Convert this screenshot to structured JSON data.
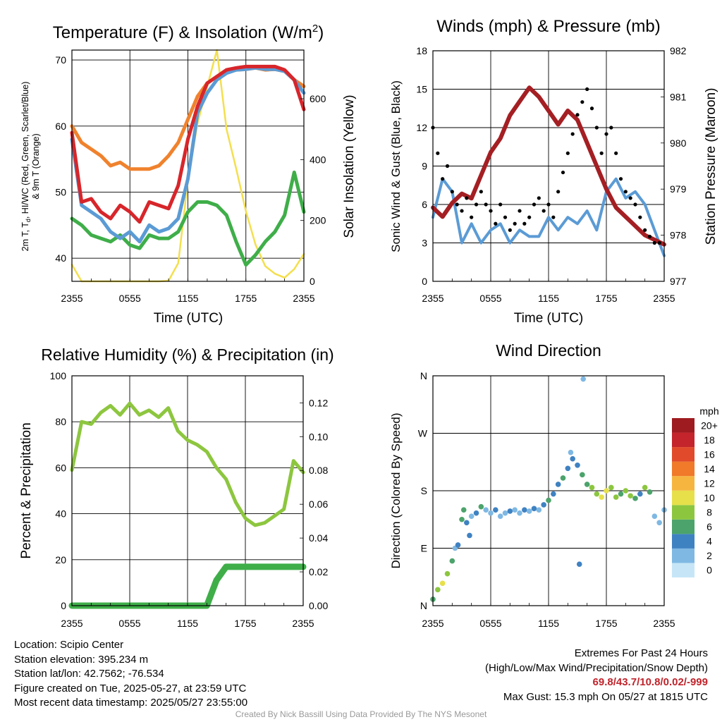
{
  "panels": {
    "temp": {
      "title": "Temperature (F) & Insolation (W/m",
      "title_sup": "2",
      "title_end": ")",
      "ylabel_left_1": "2m T, T",
      "ylabel_left_sub": "d",
      "ylabel_left_2": ", HI/WC (Red, Green, Scarlet/Blue)",
      "ylabel_left_3": "& 9m T (Orange)",
      "ylabel_right": "Solar Insolation (Yellow)",
      "xlabel": "Time (UTC)"
    },
    "wind": {
      "title": "Winds (mph) & Pressure (mb)",
      "ylabel_left": "Sonic Wind & Gust (Blue, Black)",
      "ylabel_right": "Station Pressure (Maroon)",
      "xlabel": "Time (UTC)"
    },
    "rh": {
      "title": "Relative Humidity (%) & Precipitation (in)",
      "ylabel_left": "Percent & Precipitation"
    },
    "dir": {
      "title": "Wind Direction",
      "ylabel_left": "Direction (Colored By Speed)",
      "colorbar_title": "mph"
    }
  },
  "info": {
    "location": "Location: Scipio Center",
    "elevation": "Station elevation: 395.234 m",
    "latlon": "Station lat/lon: 42.7562; -76.534",
    "created": "Figure created on Tue, 2025-05-27, at 23:59 UTC",
    "recent": "Most recent data timestamp: 2025/05/27 23:55:00"
  },
  "extremes": {
    "title": "Extremes For Past 24 Hours",
    "subtitle": "(High/Low/Max Wind/Precipitation/Snow Depth)",
    "values": "69.8/43.7/10.8/0.02/-999",
    "gust": "Max Gust: 15.3 mph On 05/27 at 1815 UTC"
  },
  "credit": "Created By Nick Bassill Using Data Provided By The NYS Mesonet",
  "chart_data": [
    {
      "id": "temp",
      "type": "line",
      "x_ticks": [
        "2355",
        "0555",
        "1155",
        "1755",
        "2355"
      ],
      "ylim": [
        36.5,
        71.5
      ],
      "yticks": [
        40,
        50,
        60,
        70
      ],
      "y2lim": [
        0,
        760
      ],
      "y2ticks": [
        0,
        200,
        400,
        600
      ],
      "x_hours": [
        0,
        1,
        2,
        3,
        4,
        5,
        6,
        7,
        8,
        9,
        10,
        11,
        12,
        13,
        14,
        15,
        16,
        17,
        18,
        19,
        20,
        21,
        22,
        23,
        24
      ],
      "series": [
        {
          "color": "#f0822d",
          "axis": "left",
          "values": [
            60,
            57.5,
            56.5,
            55.5,
            54,
            54.5,
            53.5,
            53.5,
            53.5,
            54,
            55.5,
            57.5,
            61,
            64.5,
            66.5,
            67.5,
            68.3,
            68.5,
            68.6,
            68.8,
            68.5,
            68.6,
            68.3,
            67,
            66
          ]
        },
        {
          "color": "#d7262b",
          "axis": "left",
          "values": [
            59,
            48.5,
            49,
            47,
            46,
            48,
            47,
            45.5,
            48.5,
            48,
            47.5,
            51,
            58,
            63,
            66.5,
            67.5,
            68.5,
            68.8,
            69,
            69,
            69,
            69,
            68.5,
            67,
            62.5
          ]
        },
        {
          "color": "#5b9bd5",
          "axis": "left",
          "values": [
            58,
            48,
            47,
            46,
            44,
            43,
            44,
            42.5,
            45,
            44,
            44.5,
            46,
            52,
            62,
            65,
            67,
            68,
            68.5,
            68.6,
            68.8,
            68.6,
            68.6,
            68.3,
            67,
            65
          ]
        },
        {
          "color": "#3fae49",
          "axis": "left",
          "values": [
            46,
            45,
            43.5,
            43,
            42.5,
            43.5,
            42,
            41.5,
            43.5,
            43,
            43,
            44,
            47,
            48.5,
            48.5,
            48,
            46.5,
            42.5,
            39,
            40.5,
            42.5,
            44,
            46.5,
            53,
            47
          ]
        },
        {
          "color": "#f4df4e",
          "axis": "right",
          "values": [
            55,
            0,
            0,
            0,
            0,
            0,
            0,
            0,
            0,
            0,
            2,
            60,
            330,
            520,
            640,
            760,
            500,
            370,
            230,
            120,
            50,
            25,
            12,
            40,
            90
          ]
        }
      ]
    },
    {
      "id": "wind",
      "type": "line",
      "x_ticks": [
        "2355",
        "0555",
        "1155",
        "1755",
        "2355"
      ],
      "ylim": [
        0,
        18
      ],
      "yticks": [
        0,
        3,
        6,
        9,
        12,
        15,
        18
      ],
      "y2lim": [
        977,
        982
      ],
      "y2ticks": [
        977,
        978,
        979,
        980,
        981,
        982
      ],
      "x_hours": [
        0,
        1,
        2,
        3,
        4,
        5,
        6,
        7,
        8,
        9,
        10,
        11,
        12,
        13,
        14,
        15,
        16,
        17,
        18,
        19,
        20,
        21,
        22,
        23,
        24
      ],
      "series": [
        {
          "name": "Sonic Wind",
          "color": "#5b9bd5",
          "axis": "left",
          "values": [
            5,
            8,
            7,
            3,
            4.5,
            3,
            4,
            4.5,
            3,
            4,
            3.5,
            3.5,
            5,
            4,
            5,
            4.5,
            5.5,
            4,
            7,
            8,
            6.5,
            7,
            6,
            4,
            2
          ]
        },
        {
          "name": "Station Pressure",
          "color": "#a41f23",
          "axis": "right",
          "values": [
            978.6,
            978.4,
            978.7,
            978.9,
            978.8,
            979.3,
            979.8,
            980.1,
            980.6,
            980.9,
            981.2,
            981.0,
            980.7,
            980.4,
            980.7,
            980.5,
            980.0,
            979.5,
            979.0,
            978.6,
            978.4,
            978.2,
            978.0,
            977.9,
            977.8
          ]
        }
      ],
      "gust_points": [
        [
          0,
          12
        ],
        [
          0.5,
          10
        ],
        [
          1,
          8
        ],
        [
          1.5,
          9
        ],
        [
          2,
          7
        ],
        [
          2.5,
          6
        ],
        [
          3,
          5.5
        ],
        [
          3.5,
          6.5
        ],
        [
          4,
          5
        ],
        [
          4.5,
          6
        ],
        [
          5,
          7
        ],
        [
          5.5,
          6
        ],
        [
          6,
          5.5
        ],
        [
          6.5,
          4.5
        ],
        [
          7,
          6
        ],
        [
          7.5,
          5
        ],
        [
          8,
          4
        ],
        [
          8.5,
          4.5
        ],
        [
          9,
          5.5
        ],
        [
          9.5,
          4.5
        ],
        [
          10,
          5
        ],
        [
          10.5,
          6
        ],
        [
          11,
          6.5
        ],
        [
          11.5,
          5.5
        ],
        [
          12,
          6
        ],
        [
          12.5,
          5
        ],
        [
          13,
          7
        ],
        [
          13.5,
          8.5
        ],
        [
          14,
          10
        ],
        [
          14.5,
          11.5
        ],
        [
          15,
          13
        ],
        [
          15.5,
          14
        ],
        [
          16,
          15
        ],
        [
          16.5,
          13.5
        ],
        [
          17,
          12
        ],
        [
          17.5,
          10
        ],
        [
          18,
          11.5
        ],
        [
          18.5,
          12
        ],
        [
          19,
          10
        ],
        [
          19.5,
          8
        ],
        [
          20,
          7
        ],
        [
          20.5,
          6.5
        ],
        [
          21,
          6
        ],
        [
          21.5,
          5
        ],
        [
          22,
          4
        ],
        [
          22.5,
          3.5
        ],
        [
          23,
          3
        ],
        [
          23.5,
          3
        ]
      ]
    },
    {
      "id": "rh",
      "type": "line",
      "x_ticks": [
        "2355",
        "0555",
        "1155",
        "1755",
        "2355"
      ],
      "ylim": [
        0,
        100
      ],
      "yticks": [
        0,
        20,
        40,
        60,
        80,
        100
      ],
      "y2lim": [
        0,
        0.136
      ],
      "y2ticks": [
        "0.00",
        "0.02",
        "0.04",
        "0.06",
        "0.08",
        "0.10",
        "0.12"
      ],
      "x_hours": [
        0,
        1,
        2,
        3,
        4,
        5,
        6,
        7,
        8,
        9,
        10,
        11,
        12,
        13,
        14,
        15,
        16,
        17,
        18,
        19,
        20,
        21,
        22,
        23,
        24
      ],
      "series": [
        {
          "name": "Relative Humidity",
          "color": "#8dc63f",
          "axis": "left",
          "values": [
            59,
            80,
            79,
            84,
            87,
            83,
            88,
            83,
            85,
            82,
            86,
            76,
            72,
            70,
            67,
            60,
            55,
            45,
            38,
            35,
            36,
            39,
            42,
            63,
            58
          ]
        },
        {
          "name": "Precipitation",
          "color": "#3fae49",
          "axis": "right",
          "values": [
            0,
            0,
            0,
            0,
            0,
            0,
            0,
            0,
            0,
            0,
            0,
            0,
            0,
            0,
            0,
            0.015,
            0.023,
            0.023,
            0.023,
            0.023,
            0.023,
            0.023,
            0.023,
            0.023,
            0.023
          ]
        }
      ]
    },
    {
      "id": "dir",
      "type": "scatter",
      "x_ticks": [
        "2355",
        "0555",
        "1155",
        "1755",
        "2355"
      ],
      "y_ticks": [
        "N",
        "E",
        "S",
        "W",
        "N"
      ],
      "ylim": [
        0,
        360
      ],
      "colorbar": {
        "labels": [
          "0",
          "2",
          "4",
          "6",
          "8",
          "10",
          "12",
          "14",
          "16",
          "18",
          "20+"
        ],
        "colors": [
          "#c6e6f7",
          "#7fb8e3",
          "#3f82c2",
          "#4ca36b",
          "#8cc63f",
          "#e7e04a",
          "#f6b53f",
          "#f07a2a",
          "#e14a2b",
          "#c4242b",
          "#9e1b20"
        ]
      },
      "points": [
        [
          0,
          10,
          6
        ],
        [
          0.5,
          25,
          7
        ],
        [
          1,
          35,
          9
        ],
        [
          1.5,
          50,
          7
        ],
        [
          2,
          70,
          6
        ],
        [
          2.3,
          90,
          2
        ],
        [
          2.6,
          95,
          3
        ],
        [
          3,
          135,
          5
        ],
        [
          3.2,
          150,
          6
        ],
        [
          3.5,
          130,
          3
        ],
        [
          3.8,
          110,
          4
        ],
        [
          4,
          140,
          2
        ],
        [
          4.5,
          145,
          3
        ],
        [
          5,
          155,
          5
        ],
        [
          5.5,
          150,
          2
        ],
        [
          6,
          145,
          2
        ],
        [
          6.5,
          150,
          3
        ],
        [
          7,
          140,
          1
        ],
        [
          7.5,
          145,
          2
        ],
        [
          8,
          148,
          3
        ],
        [
          8.5,
          150,
          2
        ],
        [
          9,
          145,
          2
        ],
        [
          9.5,
          150,
          3
        ],
        [
          10,
          148,
          2
        ],
        [
          10.5,
          152,
          3
        ],
        [
          11,
          150,
          2
        ],
        [
          11.5,
          158,
          4
        ],
        [
          12,
          165,
          5
        ],
        [
          12.5,
          175,
          3
        ],
        [
          13,
          190,
          4
        ],
        [
          13.5,
          200,
          5
        ],
        [
          14,
          215,
          4
        ],
        [
          14.5,
          230,
          3
        ],
        [
          15,
          220,
          4
        ],
        [
          15.5,
          205,
          5
        ],
        [
          16,
          190,
          6
        ],
        [
          16.5,
          185,
          7
        ],
        [
          17,
          175,
          8
        ],
        [
          17.5,
          170,
          10
        ],
        [
          18,
          180,
          9
        ],
        [
          18.5,
          185,
          7
        ],
        [
          19,
          170,
          8
        ],
        [
          19.5,
          175,
          6
        ],
        [
          20,
          180,
          7
        ],
        [
          20.5,
          172,
          8
        ],
        [
          21,
          168,
          6
        ],
        [
          21.5,
          175,
          4
        ],
        [
          22,
          185,
          7
        ],
        [
          22.5,
          178,
          5
        ],
        [
          23,
          140,
          2
        ],
        [
          23.5,
          130,
          1
        ],
        [
          24,
          150,
          2
        ],
        [
          15.2,
          65,
          3
        ],
        [
          15.6,
          355,
          2
        ],
        [
          14.3,
          240,
          1
        ]
      ]
    }
  ]
}
